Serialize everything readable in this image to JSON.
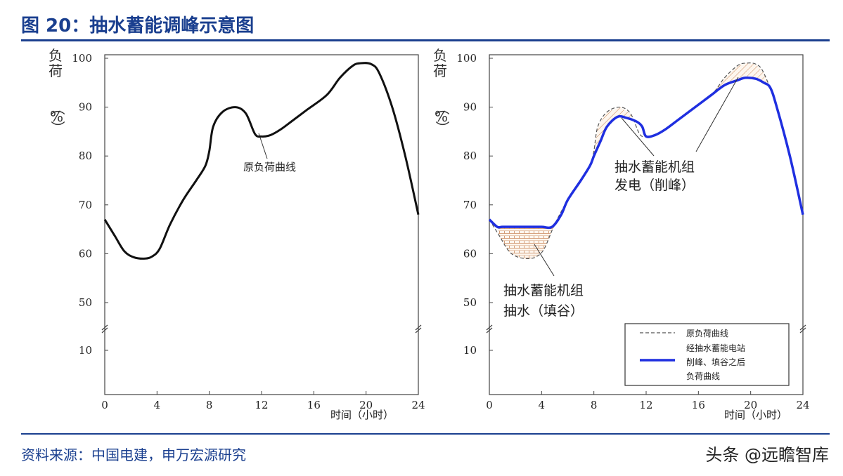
{
  "title": "图 20：抽水蓄能调峰示意图",
  "source": "资料来源：中国电建，申万宏源研究",
  "watermark": "头条 @远瞻智库",
  "colors": {
    "accent": "#1a3f8f",
    "original_line": "#111111",
    "adjusted_line": "#1f2fe0",
    "hatch": "#c9875a"
  },
  "chart_data": [
    {
      "type": "line",
      "y_axis_label_chars": [
        "负",
        "荷",
        "（",
        "%",
        "）"
      ],
      "y_ticks": [
        10,
        50,
        60,
        70,
        80,
        90,
        100
      ],
      "x_ticks": [
        0,
        4,
        8,
        12,
        16,
        20,
        24
      ],
      "xlabel": "时间（小时）",
      "y_axis_break": true,
      "xlim": [
        0,
        24
      ],
      "annotations": [
        {
          "text": "原负荷曲线"
        }
      ],
      "series": [
        {
          "role": "original",
          "x": [
            0,
            0.8,
            1.5,
            2.2,
            3,
            3.6,
            4.2,
            5,
            6,
            7,
            7.7,
            8,
            8.3,
            9,
            10,
            10.8,
            11.5,
            12,
            12.7,
            13.5,
            14.5,
            15.5,
            17,
            18,
            19,
            19.6,
            20.4,
            21,
            22,
            23,
            24
          ],
          "y": [
            67,
            63.5,
            60.5,
            59.3,
            59,
            59.4,
            61,
            66,
            71,
            75,
            78,
            81,
            86,
            89,
            90,
            88.7,
            84.5,
            84,
            84.3,
            85.5,
            87.5,
            89.5,
            92.5,
            96,
            98.5,
            99,
            98.8,
            97,
            90,
            80,
            68
          ]
        }
      ]
    },
    {
      "type": "line",
      "y_axis_label_chars": [
        "负",
        "荷",
        "（",
        "%",
        "）"
      ],
      "y_ticks": [
        10,
        50,
        60,
        70,
        80,
        90,
        100
      ],
      "x_ticks": [
        0,
        4,
        8,
        12,
        16,
        20,
        24
      ],
      "xlabel": "时间（小时）",
      "y_axis_break": true,
      "xlim": [
        0,
        24
      ],
      "annotations": [
        {
          "text": "抽水蓄能机组发电（削峰）",
          "lines": [
            "抽水蓄能机组",
            "发电（削峰）"
          ]
        },
        {
          "text": "抽水蓄能机组抽水（填谷）",
          "lines": [
            "抽水蓄能机组",
            "抽水（填谷）"
          ]
        }
      ],
      "legend": {
        "placement": "bottom-right",
        "entries": [
          {
            "label": "原负荷曲线",
            "style": "dashed"
          },
          {
            "label": "经抽水蓄能电站削峰、填谷之后负荷曲线",
            "lines": [
              "经抽水蓄能电站",
              "削峰、填谷之后",
              "负荷曲线"
            ],
            "style": "solid-blue"
          }
        ]
      },
      "series": [
        {
          "role": "original",
          "x": [
            0,
            0.8,
            1.5,
            2.2,
            3,
            3.6,
            4.2,
            5,
            6,
            7,
            7.7,
            8,
            8.3,
            9,
            10,
            10.8,
            11.5,
            12,
            12.7,
            13.5,
            14.5,
            15.5,
            17,
            18,
            19,
            19.6,
            20.4,
            21,
            22,
            23,
            24
          ],
          "y": [
            67,
            63.5,
            60.5,
            59.3,
            59,
            59.4,
            61,
            66,
            71,
            75,
            78,
            81,
            86,
            89,
            90,
            88.7,
            84.5,
            84,
            84.3,
            85.5,
            87.5,
            89.5,
            92.5,
            96,
            98.5,
            99,
            98.8,
            97,
            90,
            80,
            68
          ]
        },
        {
          "role": "adjusted",
          "x": [
            0,
            0.6,
            1,
            2,
            3,
            4,
            4.8,
            5.5,
            6,
            7,
            7.7,
            8,
            8.5,
            9,
            9.8,
            10.5,
            11.3,
            11.7,
            12,
            12.7,
            13.5,
            14.5,
            15.5,
            17,
            18,
            19,
            19.6,
            20.4,
            21,
            21.5,
            22,
            23,
            24
          ],
          "y": [
            67,
            65.5,
            65.5,
            65.5,
            65.5,
            65.5,
            65.5,
            68,
            71,
            75,
            78,
            80,
            83,
            86,
            88,
            87.8,
            87,
            86,
            84,
            84.3,
            85.5,
            87.5,
            89.5,
            92.5,
            94.5,
            95.5,
            96,
            95.8,
            95,
            94,
            90,
            80,
            68
          ]
        }
      ]
    }
  ]
}
